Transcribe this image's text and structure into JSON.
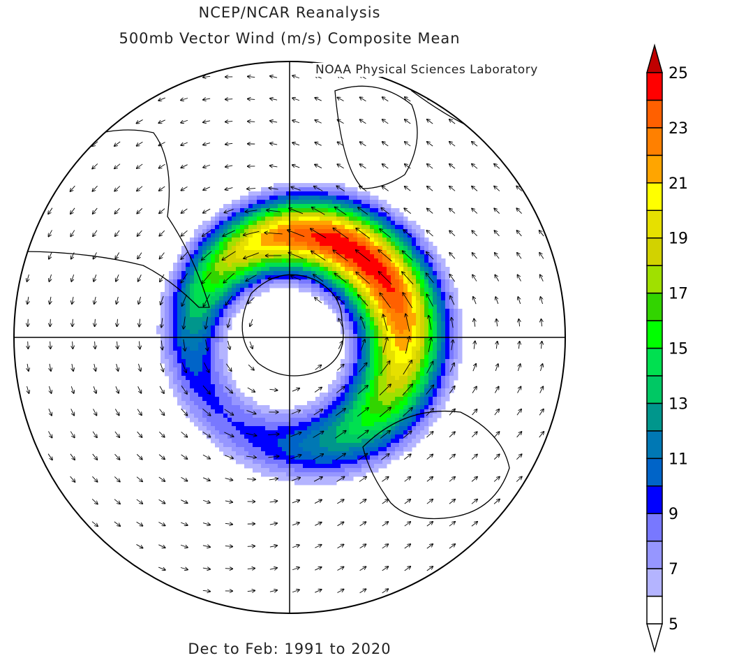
{
  "header": {
    "title_line1": "NCEP/NCAR Reanalysis",
    "title_line2": "500mb Vector Wind (m/s) Composite Mean",
    "credit": "NOAA Physical Sciences Laboratory"
  },
  "footer": {
    "period": "Dec to Feb: 1991 to 2020"
  },
  "chart_data": {
    "type": "heatmap",
    "projection": "south polar stereographic",
    "variable": "500mb vector wind speed (m/s)",
    "colorbar": {
      "ticks": [
        "25",
        "23",
        "21",
        "19",
        "17",
        "15",
        "13",
        "11",
        "9",
        "7",
        "5"
      ],
      "levels": [
        5,
        6,
        7,
        8,
        9,
        10,
        11,
        12,
        13,
        14,
        15,
        16,
        17,
        18,
        19,
        20,
        21,
        22,
        23,
        24,
        25
      ],
      "colors": [
        "#ffffff",
        "#b4b4ff",
        "#9696ff",
        "#7878ff",
        "#0000ff",
        "#0064c8",
        "#0078b4",
        "#00968c",
        "#00c864",
        "#00e050",
        "#00ff00",
        "#32d400",
        "#a0e000",
        "#d2d200",
        "#e6e000",
        "#ffff00",
        "#ffa500",
        "#ff8000",
        "#ff6000",
        "#ff0000"
      ],
      "over_color": "#c00000",
      "under_color": "#ffffff"
    },
    "features": "Circumpolar westerly jet ring around Antarctica, maximum >24 m/s in the Indian Ocean sector"
  }
}
